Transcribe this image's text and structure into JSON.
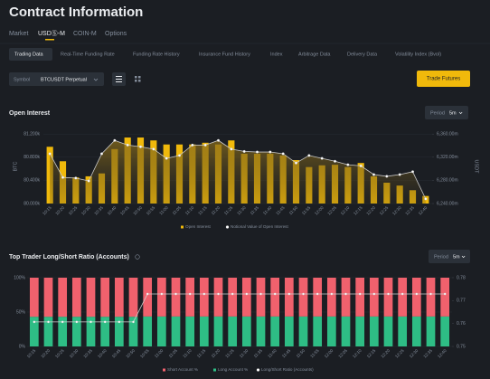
{
  "header": {
    "title": "Contract Information"
  },
  "tabs": [
    "Market",
    "USDⓈ-M",
    "COIN-M",
    "Options"
  ],
  "subtabs": [
    "Trading Data",
    "Real-Time Funding Rate",
    "Funding Rate History",
    "Insurance Fund History",
    "Index",
    "Arbitrage Data",
    "Delivery Data",
    "Volatility Index (Bvol)"
  ],
  "symbol": {
    "label": "Symbol",
    "value": "BTCUSDT Perpetual"
  },
  "button": "Trade Futures",
  "chart_data": [
    {
      "type": "bar",
      "title": "Open Interest",
      "period_label": "Period",
      "period": "5m",
      "ylabel": "BTC",
      "y2label": "USDT",
      "categories": [
        "10:15",
        "10:20",
        "10:25",
        "10:30",
        "10:35",
        "10:40",
        "10:45",
        "10:50",
        "10:55",
        "11:00",
        "11:05",
        "11:10",
        "11:15",
        "11:20",
        "11:25",
        "11:30",
        "11:35",
        "11:40",
        "11:45",
        "11:50",
        "11:55",
        "12:00",
        "12:05",
        "12:10",
        "12:15",
        "12:20",
        "12:25",
        "12:30",
        "12:35",
        "12:40"
      ],
      "series": [
        {
          "name": "Open Interest",
          "type": "bar",
          "color": "#f0b90b",
          "values": [
            80980,
            80730,
            80450,
            80470,
            80520,
            80940,
            81140,
            81140,
            81090,
            81020,
            81020,
            81020,
            81050,
            81020,
            81090,
            80860,
            80860,
            80860,
            80830,
            80750,
            80630,
            80660,
            80670,
            80630,
            80700,
            80470,
            80360,
            80310,
            80230,
            80130
          ]
        },
        {
          "name": "Notional Value of Open Interest",
          "type": "line",
          "axis": "y2",
          "color": "#c9c9c9",
          "values": [
            6326000000,
            6285000000,
            6284000000,
            6279000000,
            6326000000,
            6349000000,
            6341000000,
            6338000000,
            6334000000,
            6318000000,
            6323000000,
            6341000000,
            6341000000,
            6349000000,
            6334000000,
            6330000000,
            6329000000,
            6329000000,
            6326000000,
            6310000000,
            6323000000,
            6318000000,
            6313000000,
            6307000000,
            6305000000,
            6290000000,
            6287000000,
            6290000000,
            6295000000,
            6248000000
          ]
        }
      ],
      "ylim": [
        80000,
        81300
      ],
      "yticks": [
        {
          "value": 80000,
          "label": "80.000k"
        },
        {
          "value": 80400,
          "label": "80.400k"
        },
        {
          "value": 80800,
          "label": "80.800k"
        },
        {
          "value": 81200,
          "label": "81.200k"
        }
      ],
      "y2lim": [
        6240000000,
        6370000000
      ],
      "y2ticks": [
        {
          "value": 6240000000,
          "label": "6,240.00m"
        },
        {
          "value": 6280000000,
          "label": "6,280.00m"
        },
        {
          "value": 6320000000,
          "label": "6,320.00m"
        },
        {
          "value": 6360000000,
          "label": "6,360.00m"
        }
      ]
    },
    {
      "type": "stacked",
      "title": "Top Trader Long/Short Ratio (Accounts)",
      "period_label": "Period",
      "period": "5m",
      "categories": [
        "10:15",
        "10:20",
        "10:25",
        "10:30",
        "10:35",
        "10:40",
        "10:45",
        "10:50",
        "10:55",
        "11:00",
        "11:05",
        "11:10",
        "11:15",
        "11:20",
        "11:25",
        "11:30",
        "11:35",
        "11:40",
        "11:45",
        "11:50",
        "11:55",
        "12:00",
        "12:05",
        "12:10",
        "12:15",
        "12:20",
        "12:25",
        "12:30",
        "12:35",
        "12:40"
      ],
      "series": [
        {
          "name": "Short Account %",
          "type": "bar",
          "color": "#f0616d",
          "values": [
            56.8,
            56.8,
            56.8,
            56.8,
            56.8,
            56.8,
            56.8,
            56.8,
            56.4,
            56.4,
            56.4,
            56.4,
            56.4,
            56.4,
            56.4,
            56.4,
            56.4,
            56.4,
            56.4,
            56.4,
            56.4,
            56.4,
            56.4,
            56.4,
            56.4,
            56.4,
            56.4,
            56.4,
            56.4,
            56.4
          ]
        },
        {
          "name": "Long Account %",
          "type": "bar",
          "color": "#2ebd85",
          "values": [
            43.2,
            43.2,
            43.2,
            43.2,
            43.2,
            43.2,
            43.2,
            43.2,
            43.6,
            43.6,
            43.6,
            43.6,
            43.6,
            43.6,
            43.6,
            43.6,
            43.6,
            43.6,
            43.6,
            43.6,
            43.6,
            43.6,
            43.6,
            43.6,
            43.6,
            43.6,
            43.6,
            43.6,
            43.6,
            43.6
          ]
        },
        {
          "name": "Long/Short Ratio (Accounts)",
          "type": "line",
          "axis": "y2",
          "color": "#d0d0d0",
          "values": [
            0.7607,
            0.7607,
            0.7607,
            0.7607,
            0.7607,
            0.7607,
            0.7607,
            0.7607,
            0.7729,
            0.7729,
            0.7729,
            0.7729,
            0.7729,
            0.7729,
            0.7729,
            0.7729,
            0.7729,
            0.7729,
            0.7729,
            0.7729,
            0.7729,
            0.7729,
            0.7729,
            0.7729,
            0.7729,
            0.7729,
            0.7729,
            0.7729,
            0.7729,
            0.7729
          ]
        }
      ],
      "ylim": [
        0,
        100
      ],
      "yticks": [
        {
          "value": 0,
          "label": "0%"
        },
        {
          "value": 50,
          "label": "50%"
        },
        {
          "value": 100,
          "label": "100%"
        }
      ],
      "y2lim": [
        0.75,
        0.78
      ],
      "y2ticks": [
        0.75,
        0.76,
        0.77,
        0.78
      ]
    }
  ]
}
